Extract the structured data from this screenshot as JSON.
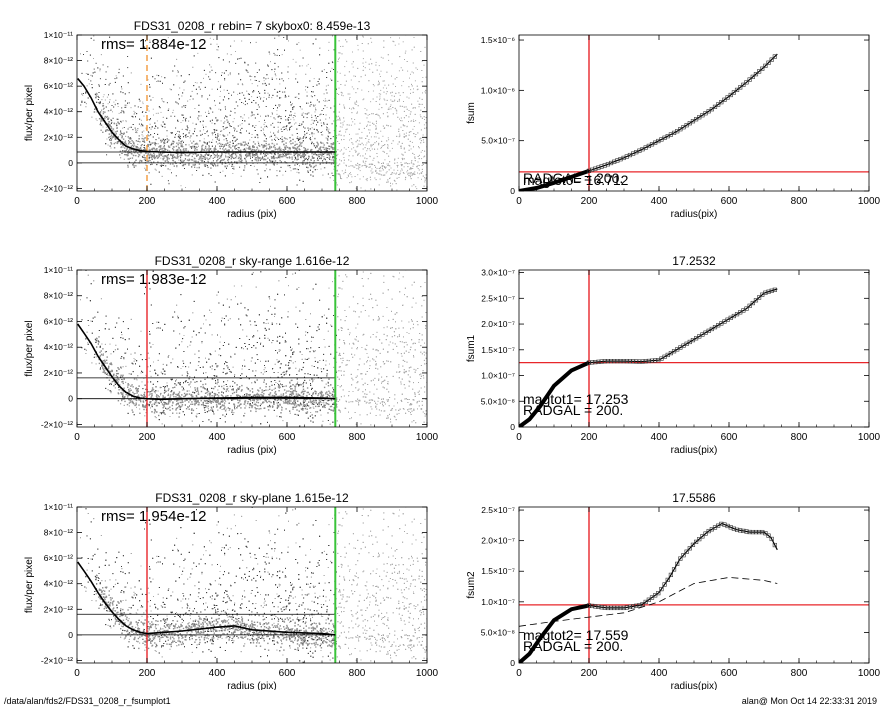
{
  "footer": {
    "path": "/data/alan/fds2/FDS31_0208_r_fsumplot1",
    "stamp": "alan@  Mon Oct 14 22:33:31 2019"
  },
  "colors": {
    "scatter_dark": "#3a3a3a",
    "scatter_light": "#a8a8a8",
    "profile": "#000000",
    "red_line": "#e8262a",
    "green_line": "#39c339",
    "orange_dash": "#f39a3d"
  },
  "chart_data": [
    {
      "type": "scatter",
      "title": "FDS31_0208_r rebin= 7    skybox0:  8.459e-13",
      "xlabel": "radius (pix)",
      "ylabel": "flux/per pixel",
      "xlim": [
        0,
        1000
      ],
      "ylim": [
        -2.2e-12,
        1e-11
      ],
      "xticks": [
        0,
        200,
        400,
        600,
        800,
        1000
      ],
      "xticklabels": [
        "0",
        "200",
        "400",
        "600",
        "800",
        "1000"
      ],
      "yticks": [
        -2e-12,
        0,
        2e-12,
        4e-12,
        6e-12,
        8e-12,
        1e-11
      ],
      "yticklabels": [
        "-2×10⁻¹²",
        "0",
        "2×10⁻¹²",
        "4×10⁻¹²",
        "6×10⁻¹²",
        "8×10⁻¹²",
        "1×10⁻¹¹"
      ],
      "annotation": "rms= 1.884e-12",
      "hlines": [
        0,
        8.5e-13
      ],
      "vlines": [
        {
          "x": 200,
          "style": "dashed",
          "color": "orange"
        },
        {
          "x": 738,
          "style": "solid",
          "color": "green"
        }
      ],
      "series": [
        {
          "x": [
            2,
            20,
            40,
            60,
            80,
            100,
            120,
            140,
            160,
            180,
            200,
            240,
            300,
            400,
            500,
            600,
            700,
            738
          ],
          "y": [
            6.6e-12,
            6e-12,
            5.1e-12,
            4e-12,
            3.2e-12,
            2.4e-12,
            1.8e-12,
            1.3e-12,
            1.1e-12,
            9.5e-13,
            9e-13,
            8.5e-13,
            8e-13,
            8.5e-13,
            8.5e-13,
            8.5e-13,
            8.5e-13,
            8.5e-13
          ]
        }
      ]
    },
    {
      "type": "line",
      "title": "",
      "xlabel": "radius(pix)",
      "ylabel": "fsum",
      "xlim": [
        0,
        1000
      ],
      "ylim": [
        0,
        1.55e-06
      ],
      "xticks": [
        0,
        200,
        400,
        600,
        800,
        1000
      ],
      "xticklabels": [
        "0",
        "200",
        "400",
        "600",
        "800",
        "1000"
      ],
      "yticks": [
        0,
        5e-07,
        1e-06,
        1.5e-06
      ],
      "yticklabels": [
        "0",
        "5.0×10⁻⁷",
        "1.0×10⁻⁶",
        "1.5×10⁻⁶"
      ],
      "annotations": [
        "magtot0= 16.712",
        "RADGAL =   200."
      ],
      "hline": 1.9e-07,
      "vline": 200,
      "series": [
        {
          "x": [
            0,
            50,
            100,
            150,
            200,
            250,
            300,
            350,
            400,
            450,
            500,
            550,
            600,
            650,
            700,
            738
          ],
          "y": [
            0,
            3e-08,
            8e-08,
            1.4e-07,
            2e-07,
            2.6e-07,
            3.3e-07,
            4.1e-07,
            5e-07,
            5.9e-07,
            7e-07,
            8.1e-07,
            9.4e-07,
            1.08e-06,
            1.23e-06,
            1.36e-06
          ]
        }
      ]
    },
    {
      "type": "scatter",
      "title": "FDS31_0208_r sky-range  1.616e-12",
      "xlabel": "radius (pix)",
      "ylabel": "flux/per pixel",
      "xlim": [
        0,
        1000
      ],
      "ylim": [
        -2.2e-12,
        1e-11
      ],
      "xticks": [
        0,
        200,
        400,
        600,
        800,
        1000
      ],
      "xticklabels": [
        "0",
        "200",
        "400",
        "600",
        "800",
        "1000"
      ],
      "yticks": [
        -2e-12,
        0,
        2e-12,
        4e-12,
        6e-12,
        8e-12,
        1e-11
      ],
      "yticklabels": [
        "-2×10⁻¹²",
        "0",
        "2×10⁻¹²",
        "4×10⁻¹²",
        "6×10⁻¹²",
        "8×10⁻¹²",
        "1×10⁻¹¹"
      ],
      "annotation": "rms= 1.983e-12",
      "hlines": [
        0,
        1.616e-12
      ],
      "vlines": [
        {
          "x": 200,
          "style": "solid",
          "color": "red"
        },
        {
          "x": 738,
          "style": "solid",
          "color": "green"
        }
      ],
      "series": [
        {
          "x": [
            2,
            20,
            40,
            60,
            80,
            100,
            120,
            140,
            160,
            180,
            200,
            240,
            300,
            400,
            500,
            600,
            700,
            738
          ],
          "y": [
            5.8e-12,
            5.1e-12,
            4.3e-12,
            3.3e-12,
            2.5e-12,
            1.7e-12,
            1e-12,
            5e-13,
            2e-13,
            5e-14,
            0,
            -5e-14,
            0,
            5e-14,
            1e-13,
            1e-13,
            5e-14,
            0
          ]
        }
      ]
    },
    {
      "type": "line",
      "title": "17.2532",
      "xlabel": "radius(pix)",
      "ylabel": "fsum1",
      "xlim": [
        0,
        1000
      ],
      "ylim": [
        0,
        3.05e-07
      ],
      "xticks": [
        0,
        200,
        400,
        600,
        800,
        1000
      ],
      "xticklabels": [
        "0",
        "200",
        "400",
        "600",
        "800",
        "1000"
      ],
      "yticks": [
        0,
        5e-08,
        1e-07,
        1.5e-07,
        2e-07,
        2.5e-07,
        3e-07
      ],
      "yticklabels": [
        "0",
        "5.0×10⁻⁸",
        "1.0×10⁻⁷",
        "1.5×10⁻⁷",
        "2.0×10⁻⁷",
        "2.5×10⁻⁷",
        "3.0×10⁻⁷"
      ],
      "annotations": [
        "magtot1=  17.253",
        "RADGAL =    200."
      ],
      "hline": 1.25e-07,
      "vline": 200,
      "series": [
        {
          "x": [
            0,
            30,
            60,
            100,
            150,
            200,
            250,
            300,
            350,
            400,
            450,
            500,
            550,
            600,
            650,
            700,
            738
          ],
          "y": [
            0,
            1.5e-08,
            4e-08,
            8e-08,
            1.1e-07,
            1.25e-07,
            1.28e-07,
            1.28e-07,
            1.27e-07,
            1.3e-07,
            1.5e-07,
            1.7e-07,
            1.9e-07,
            2.1e-07,
            2.3e-07,
            2.6e-07,
            2.68e-07
          ]
        }
      ]
    },
    {
      "type": "scatter",
      "title": "FDS31_0208_r sky-plane  1.615e-12",
      "xlabel": "radius (pix)",
      "ylabel": "flux/per pixel",
      "xlim": [
        0,
        1000
      ],
      "ylim": [
        -2.2e-12,
        1e-11
      ],
      "xticks": [
        0,
        200,
        400,
        600,
        800,
        1000
      ],
      "xticklabels": [
        "0",
        "200",
        "400",
        "600",
        "800",
        "1000"
      ],
      "yticks": [
        -2e-12,
        0,
        2e-12,
        4e-12,
        6e-12,
        8e-12,
        1e-11
      ],
      "yticklabels": [
        "-2×10⁻¹²",
        "0",
        "2×10⁻¹²",
        "4×10⁻¹²",
        "6×10⁻¹²",
        "8×10⁻¹²",
        "1×10⁻¹¹"
      ],
      "annotation": "rms= 1.954e-12",
      "hlines": [
        0,
        1.615e-12
      ],
      "vlines": [
        {
          "x": 200,
          "style": "solid",
          "color": "red"
        },
        {
          "x": 738,
          "style": "solid",
          "color": "green"
        }
      ],
      "series": [
        {
          "x": [
            2,
            20,
            40,
            60,
            80,
            100,
            120,
            140,
            160,
            180,
            200,
            250,
            300,
            400,
            450,
            500,
            600,
            700,
            738
          ],
          "y": [
            5.7e-12,
            5e-12,
            4.2e-12,
            3.3e-12,
            2.5e-12,
            1.8e-12,
            1.2e-12,
            7e-13,
            4e-13,
            2e-13,
            1e-13,
            2e-13,
            3e-13,
            6e-13,
            7e-13,
            4e-13,
            2e-13,
            1e-13,
            0
          ]
        }
      ]
    },
    {
      "type": "line",
      "title": "17.5586",
      "xlabel": "radius(pix)",
      "ylabel": "fsum2",
      "xlim": [
        0,
        1000
      ],
      "ylim": [
        0,
        2.55e-07
      ],
      "xticks": [
        0,
        200,
        400,
        600,
        800,
        1000
      ],
      "xticklabels": [
        "0",
        "200",
        "400",
        "600",
        "800",
        "1000"
      ],
      "yticks": [
        0,
        5e-08,
        1e-07,
        1.5e-07,
        2e-07,
        2.5e-07
      ],
      "yticklabels": [
        "0",
        "5.0×10⁻⁸",
        "1.0×10⁻⁷",
        "1.5×10⁻⁷",
        "2.0×10⁻⁷",
        "2.5×10⁻⁷"
      ],
      "annotations": [
        "magtot2=  17.559",
        "RADGAL =    200."
      ],
      "hline": 9.5e-08,
      "vline": 200,
      "series": [
        {
          "x": [
            0,
            30,
            60,
            100,
            150,
            200,
            250,
            300,
            350,
            400,
            430,
            460,
            500,
            540,
            580,
            620,
            660,
            700,
            720,
            738
          ],
          "y": [
            0,
            1.5e-08,
            4e-08,
            7e-08,
            8.8e-08,
            9.4e-08,
            9e-08,
            9e-08,
            9.5e-08,
            1.15e-07,
            1.4e-07,
            1.7e-07,
            1.95e-07,
            2.15e-07,
            2.28e-07,
            2.18e-07,
            2.14e-07,
            2.14e-07,
            2.05e-07,
            1.85e-07
          ]
        },
        {
          "style": "dashed",
          "x": [
            0,
            100,
            200,
            300,
            400,
            500,
            600,
            700,
            738
          ],
          "y": [
            6e-08,
            6.8e-08,
            7.5e-08,
            8.2e-08,
            1e-07,
            1.3e-07,
            1.4e-07,
            1.35e-07,
            1.3e-07
          ]
        }
      ]
    }
  ]
}
